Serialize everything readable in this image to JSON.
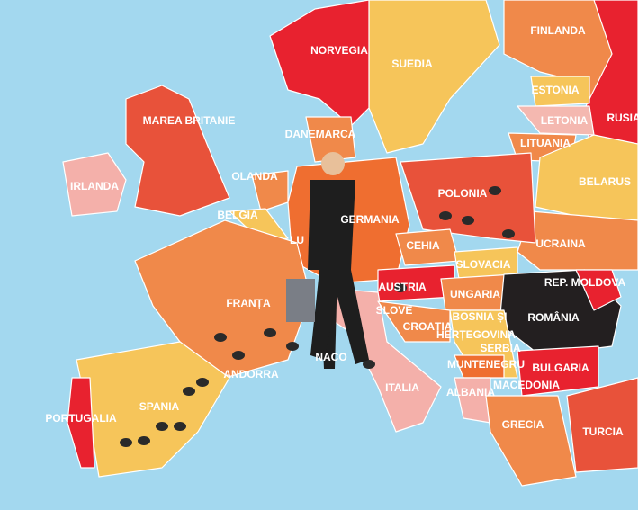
{
  "map": {
    "labels": [
      {
        "text": "NORVEGIA"
      },
      {
        "text": "SUEDIA"
      },
      {
        "text": "FINLANDA"
      },
      {
        "text": "ESTONIA"
      },
      {
        "text": "LETONIA"
      },
      {
        "text": "LITUANIA"
      },
      {
        "text": "RUSIA"
      },
      {
        "text": "MAREA BRITANIE"
      },
      {
        "text": "DANEMARCA"
      },
      {
        "text": "IRLANDA"
      },
      {
        "text": "OLANDA"
      },
      {
        "text": "BELGIA"
      },
      {
        "text": "LU"
      },
      {
        "text": "GERMANIA"
      },
      {
        "text": "POLONIA"
      },
      {
        "text": "BELARUS"
      },
      {
        "text": "UCRAINA"
      },
      {
        "text": "CEHIA"
      },
      {
        "text": "SLOVACIA"
      },
      {
        "text": "AUSTRIA"
      },
      {
        "text": "UNGARIA"
      },
      {
        "text": "REP. MOLDOVA"
      },
      {
        "text": "ROMÂNIA"
      },
      {
        "text": "FRANȚA"
      },
      {
        "text": "SLOVE"
      },
      {
        "text": "CROAȚIA"
      },
      {
        "text": "BOSNIA ȘI"
      },
      {
        "text": "HERȚEGOVINA"
      },
      {
        "text": "SERBIA"
      },
      {
        "text": "MUNTENEGRU"
      },
      {
        "text": "BULGARIA"
      },
      {
        "text": "MACEDONIA"
      },
      {
        "text": "ALBANIA"
      },
      {
        "text": "ITALIA"
      },
      {
        "text": "NACO"
      },
      {
        "text": "ANDORRA"
      },
      {
        "text": "SPANIA"
      },
      {
        "text": "PORTUGALIA"
      },
      {
        "text": "GRECIA"
      },
      {
        "text": "TURCIA"
      }
    ]
  }
}
